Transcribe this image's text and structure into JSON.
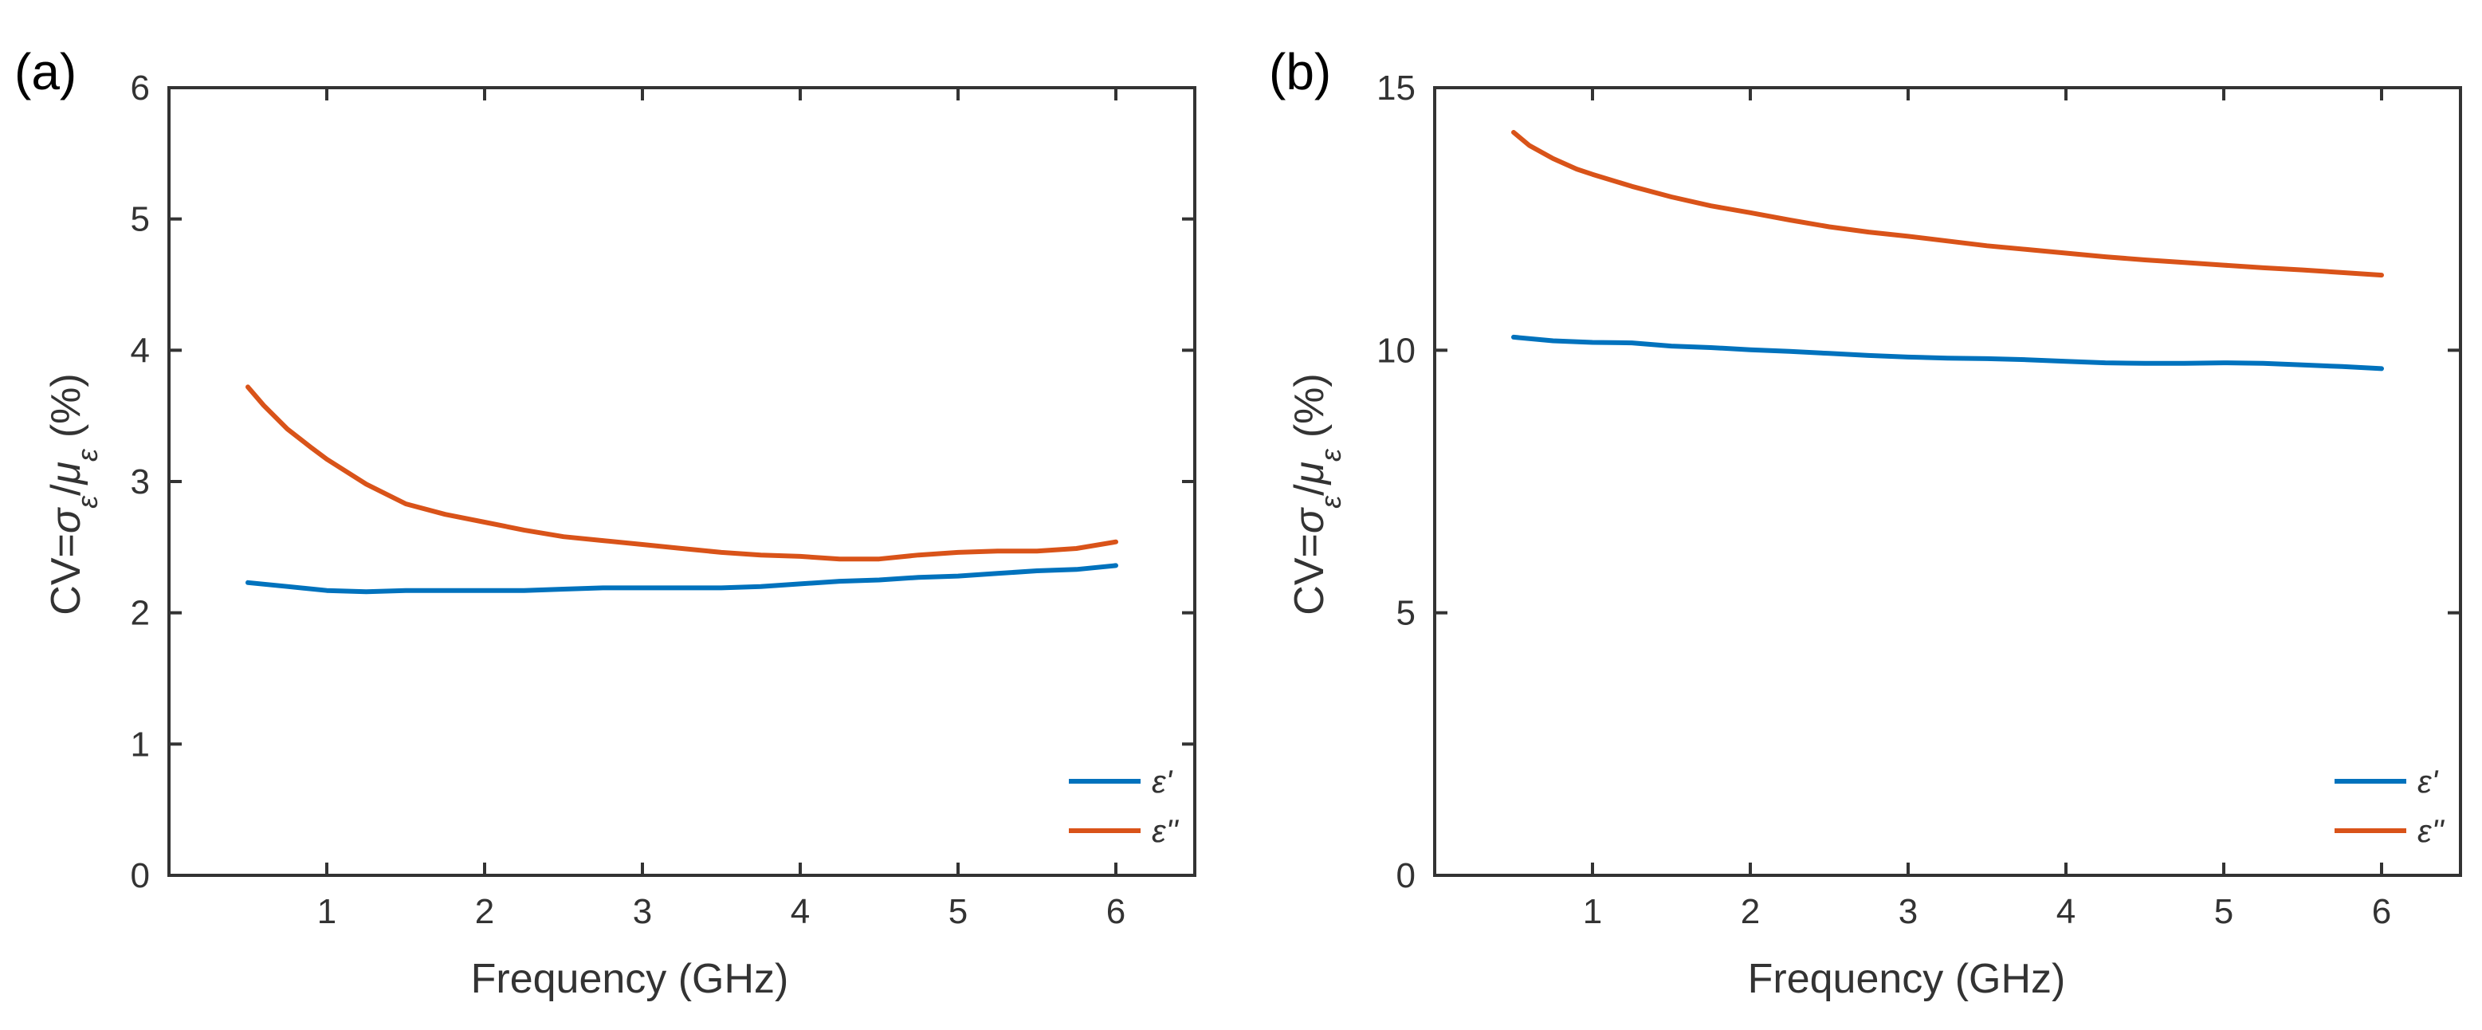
{
  "chart_data": [
    {
      "type": "line",
      "panel_label": "(a)",
      "xlabel": "Frequency (GHz)",
      "ylabel": "CV=σ_ε/μ_ε (%)",
      "ylabel_parts": {
        "lead": "CV=",
        "sigma": "σ",
        "slash": "/",
        "mu": "μ",
        "sub": "ε",
        "tail": "(%)"
      },
      "xlim": [
        0,
        6.5
      ],
      "ylim": [
        0,
        6
      ],
      "xticks": [
        1,
        2,
        3,
        4,
        5,
        6
      ],
      "xtick_labels": [
        "1",
        "2",
        "3",
        "4",
        "5",
        "6"
      ],
      "yticks": [
        0,
        1,
        2,
        3,
        4,
        5,
        6
      ],
      "ytick_labels": [
        "0",
        "1",
        "2",
        "3",
        "4",
        "5",
        "6"
      ],
      "legend_position": "bottom-right",
      "series": [
        {
          "name": "ε'",
          "color": "#0072BD",
          "x": [
            0.5,
            0.75,
            1.0,
            1.25,
            1.5,
            1.75,
            2.0,
            2.25,
            2.5,
            2.75,
            3.0,
            3.25,
            3.5,
            3.75,
            4.0,
            4.25,
            4.5,
            4.75,
            5.0,
            5.25,
            5.5,
            5.75,
            6.0
          ],
          "values": [
            2.23,
            2.2,
            2.17,
            2.16,
            2.17,
            2.17,
            2.17,
            2.17,
            2.18,
            2.19,
            2.19,
            2.19,
            2.19,
            2.2,
            2.22,
            2.24,
            2.25,
            2.27,
            2.28,
            2.3,
            2.32,
            2.33,
            2.36
          ]
        },
        {
          "name": "ε''",
          "color": "#D95319",
          "x": [
            0.5,
            0.6,
            0.75,
            0.9,
            1.0,
            1.25,
            1.5,
            1.75,
            2.0,
            2.25,
            2.5,
            2.75,
            3.0,
            3.25,
            3.5,
            3.75,
            4.0,
            4.25,
            4.5,
            4.75,
            5.0,
            5.25,
            5.5,
            5.75,
            6.0
          ],
          "values": [
            3.72,
            3.58,
            3.4,
            3.26,
            3.17,
            2.98,
            2.83,
            2.75,
            2.69,
            2.63,
            2.58,
            2.55,
            2.52,
            2.49,
            2.46,
            2.44,
            2.43,
            2.41,
            2.41,
            2.44,
            2.46,
            2.47,
            2.47,
            2.49,
            2.54
          ]
        }
      ]
    },
    {
      "type": "line",
      "panel_label": "(b)",
      "xlabel": "Frequency (GHz)",
      "ylabel": "CV=σ_ε/μ_ε (%)",
      "ylabel_parts": {
        "lead": "CV=",
        "sigma": "σ",
        "slash": "/",
        "mu": "μ",
        "sub": "ε",
        "tail": "(%)"
      },
      "xlim": [
        0,
        6.5
      ],
      "ylim": [
        0,
        15
      ],
      "xticks": [
        1,
        2,
        3,
        4,
        5,
        6
      ],
      "xtick_labels": [
        "1",
        "2",
        "3",
        "4",
        "5",
        "6"
      ],
      "yticks": [
        0,
        5,
        10,
        15
      ],
      "ytick_labels": [
        "0",
        "5",
        "10",
        "15"
      ],
      "legend_position": "bottom-right",
      "series": [
        {
          "name": "ε'",
          "color": "#0072BD",
          "x": [
            0.5,
            0.75,
            1.0,
            1.25,
            1.5,
            1.75,
            2.0,
            2.25,
            2.5,
            2.75,
            3.0,
            3.25,
            3.5,
            3.75,
            4.0,
            4.25,
            4.5,
            4.75,
            5.0,
            5.25,
            5.5,
            5.75,
            6.0
          ],
          "values": [
            10.25,
            10.18,
            10.15,
            10.14,
            10.08,
            10.05,
            10.01,
            9.98,
            9.94,
            9.9,
            9.87,
            9.85,
            9.84,
            9.82,
            9.79,
            9.76,
            9.75,
            9.75,
            9.76,
            9.75,
            9.72,
            9.69,
            9.65
          ]
        },
        {
          "name": "ε''",
          "color": "#D95319",
          "x": [
            0.5,
            0.6,
            0.75,
            0.9,
            1.0,
            1.25,
            1.5,
            1.75,
            2.0,
            2.25,
            2.5,
            2.75,
            3.0,
            3.25,
            3.5,
            3.75,
            4.0,
            4.25,
            4.5,
            4.75,
            5.0,
            5.25,
            5.5,
            5.75,
            6.0
          ],
          "values": [
            14.15,
            13.9,
            13.65,
            13.45,
            13.35,
            13.12,
            12.92,
            12.75,
            12.62,
            12.48,
            12.35,
            12.25,
            12.17,
            12.08,
            11.99,
            11.92,
            11.85,
            11.78,
            11.72,
            11.67,
            11.62,
            11.57,
            11.53,
            11.48,
            11.43
          ]
        }
      ]
    }
  ]
}
